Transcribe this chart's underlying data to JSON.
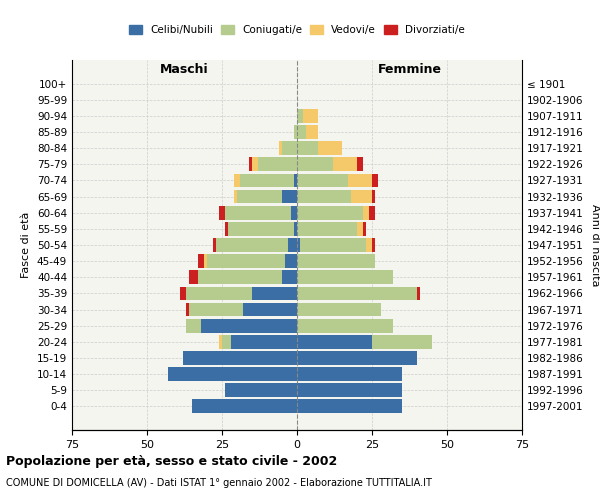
{
  "age_groups": [
    "0-4",
    "5-9",
    "10-14",
    "15-19",
    "20-24",
    "25-29",
    "30-34",
    "35-39",
    "40-44",
    "45-49",
    "50-54",
    "55-59",
    "60-64",
    "65-69",
    "70-74",
    "75-79",
    "80-84",
    "85-89",
    "90-94",
    "95-99",
    "100+"
  ],
  "birth_years": [
    "1997-2001",
    "1992-1996",
    "1987-1991",
    "1982-1986",
    "1977-1981",
    "1972-1976",
    "1967-1971",
    "1962-1966",
    "1957-1961",
    "1952-1956",
    "1947-1951",
    "1942-1946",
    "1937-1941",
    "1932-1936",
    "1927-1931",
    "1922-1926",
    "1917-1921",
    "1912-1916",
    "1907-1911",
    "1902-1906",
    "≤ 1901"
  ],
  "males": {
    "celibinubili": [
      35,
      24,
      43,
      38,
      22,
      32,
      18,
      15,
      5,
      4,
      3,
      1,
      2,
      5,
      1,
      0,
      0,
      0,
      0,
      0,
      0
    ],
    "coniugati": [
      0,
      0,
      0,
      0,
      3,
      5,
      18,
      22,
      28,
      26,
      24,
      22,
      22,
      15,
      18,
      13,
      5,
      1,
      0,
      0,
      0
    ],
    "vedovi": [
      0,
      0,
      0,
      0,
      1,
      0,
      0,
      0,
      0,
      1,
      0,
      0,
      0,
      1,
      2,
      2,
      1,
      0,
      0,
      0,
      0
    ],
    "divorziati": [
      0,
      0,
      0,
      0,
      0,
      0,
      1,
      2,
      3,
      2,
      1,
      1,
      2,
      0,
      0,
      1,
      0,
      0,
      0,
      0,
      0
    ]
  },
  "females": {
    "celibinubili": [
      35,
      35,
      35,
      40,
      25,
      0,
      0,
      0,
      0,
      0,
      1,
      0,
      0,
      0,
      0,
      0,
      0,
      0,
      0,
      0,
      0
    ],
    "coniugate": [
      0,
      0,
      0,
      0,
      20,
      32,
      28,
      40,
      32,
      26,
      22,
      20,
      22,
      18,
      17,
      12,
      7,
      3,
      2,
      0,
      0
    ],
    "vedove": [
      0,
      0,
      0,
      0,
      0,
      0,
      0,
      0,
      0,
      0,
      2,
      2,
      2,
      7,
      8,
      8,
      8,
      4,
      5,
      0,
      0
    ],
    "divorziate": [
      0,
      0,
      0,
      0,
      0,
      0,
      0,
      1,
      0,
      0,
      1,
      1,
      2,
      1,
      2,
      2,
      0,
      0,
      0,
      0,
      0
    ]
  },
  "colors": {
    "celibinubili": "#3a6ea5",
    "coniugati": "#b5cc8e",
    "vedovi": "#f5c96a",
    "divorziati": "#cc2020"
  },
  "xlim": 75,
  "title": "Popolazione per età, sesso e stato civile - 2002",
  "subtitle": "COMUNE DI DOMICELLA (AV) - Dati ISTAT 1° gennaio 2002 - Elaborazione TUTTITALIA.IT",
  "ylabel_left": "Fasce di età",
  "ylabel_right": "Anni di nascita",
  "xlabel_left": "Maschi",
  "xlabel_right": "Femmine",
  "legend_labels": [
    "Celibi/Nubili",
    "Coniugati/e",
    "Vedovi/e",
    "Divorziati/e"
  ],
  "background_color": "#ffffff",
  "plot_bg_color": "#f5f5f0",
  "grid_color": "#cccccc"
}
